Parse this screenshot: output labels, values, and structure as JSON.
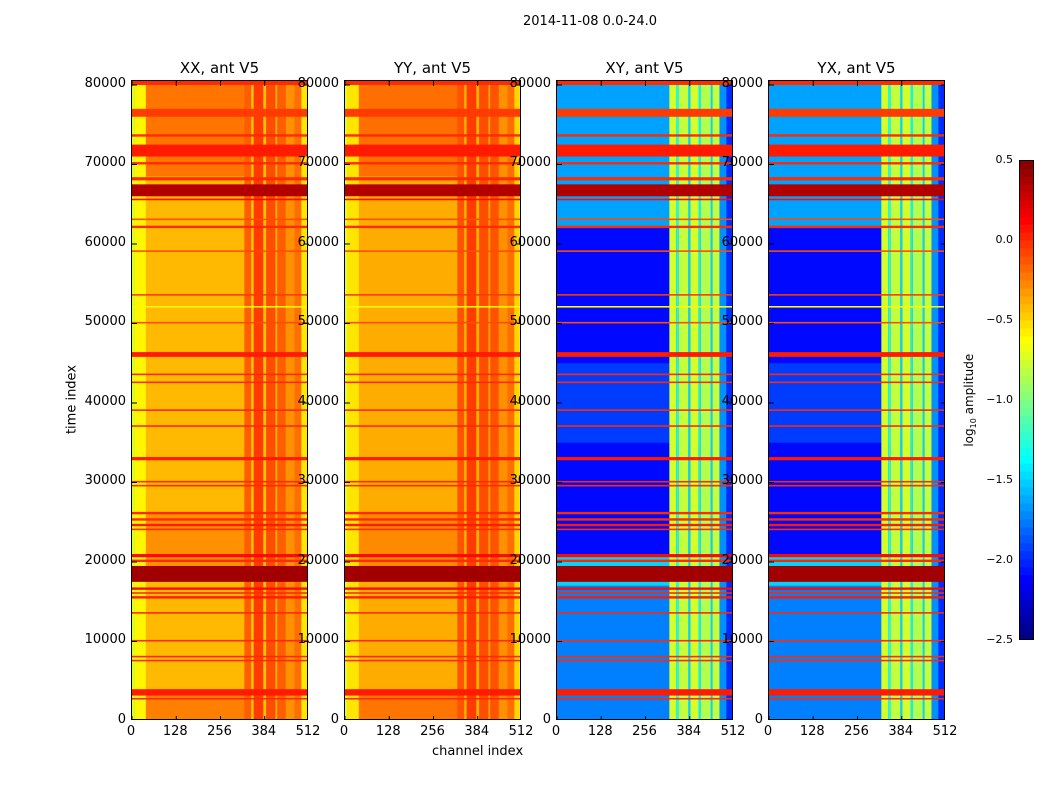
{
  "chart_data": {
    "type": "heatmap",
    "title": "2014-11-08 0.0-24.0",
    "xlabel": "channel index",
    "ylabel": "time index",
    "xlim": [
      0,
      512
    ],
    "ylim": [
      0,
      80500
    ],
    "xticks": [
      "0",
      "128",
      "256",
      "384",
      "512"
    ],
    "yticks": [
      "0",
      "10000",
      "20000",
      "30000",
      "40000",
      "50000",
      "60000",
      "70000",
      "80000"
    ],
    "colormap": "jet",
    "colorbar": {
      "label_main": "log",
      "label_sub": "10",
      "label_rest": " amplitude",
      "clim": [
        -2.5,
        0.5
      ],
      "ticks": [
        "0.5",
        "0.0",
        "−0.5",
        "−1.0",
        "−1.5",
        "−2.0",
        "−2.5"
      ]
    },
    "rfi_rows": [
      [
        80000,
        80500,
        0.0
      ],
      [
        76000,
        77000,
        -0.05
      ],
      [
        73500,
        73800,
        0.0
      ],
      [
        71000,
        72500,
        0.05
      ],
      [
        70000,
        70300,
        0.0
      ],
      [
        68000,
        68400,
        0.0
      ],
      [
        66000,
        67500,
        0.35
      ],
      [
        65500,
        65700,
        0.1
      ],
      [
        63000,
        63200,
        -0.1
      ],
      [
        62000,
        62300,
        0.0
      ],
      [
        59000,
        59200,
        -0.1
      ],
      [
        53500,
        53700,
        -0.05
      ],
      [
        52000,
        52200,
        -0.6
      ],
      [
        50000,
        50200,
        -0.1
      ],
      [
        45800,
        46400,
        0.05
      ],
      [
        43500,
        43700,
        0.0
      ],
      [
        42500,
        42700,
        0.0
      ],
      [
        39000,
        39200,
        0.0
      ],
      [
        37000,
        37200,
        0.0
      ],
      [
        32800,
        33200,
        0.05
      ],
      [
        30000,
        30200,
        0.0
      ],
      [
        29500,
        29700,
        0.0
      ],
      [
        26000,
        26300,
        0.0
      ],
      [
        25200,
        25500,
        0.0
      ],
      [
        24500,
        24800,
        0.05
      ],
      [
        24000,
        24200,
        0.0
      ],
      [
        20600,
        21000,
        0.1
      ],
      [
        20000,
        20300,
        0.0
      ],
      [
        17500,
        19500,
        0.4
      ],
      [
        16500,
        16800,
        0.1
      ],
      [
        16000,
        16200,
        0.0
      ],
      [
        15400,
        15700,
        0.05
      ],
      [
        13500,
        13700,
        0.0
      ],
      [
        10000,
        10200,
        0.0
      ],
      [
        8000,
        8200,
        0.0
      ],
      [
        7500,
        7700,
        0.0
      ],
      [
        3200,
        4000,
        0.05
      ],
      [
        2700,
        2900,
        0.0
      ]
    ],
    "panels": [
      {
        "title": "XX, ant V5",
        "time_bands": [
          [
            0,
            80500,
            -0.42
          ],
          [
            0,
            4000,
            -0.25
          ],
          [
            68500,
            80500,
            -0.22
          ],
          [
            19500,
            26000,
            -0.3
          ]
        ],
        "channel_profile": [
          [
            0,
            8,
            -0.75
          ],
          [
            8,
            40,
            -0.6
          ],
          [
            325,
            345,
            -0.15
          ],
          [
            345,
            352,
            -0.45
          ],
          [
            352,
            380,
            -0.05
          ],
          [
            380,
            388,
            -0.45
          ],
          [
            388,
            415,
            -0.1
          ],
          [
            415,
            420,
            -0.4
          ],
          [
            420,
            445,
            -0.15
          ],
          [
            445,
            470,
            -0.3
          ],
          [
            470,
            490,
            -0.2
          ],
          [
            490,
            505,
            -0.55
          ],
          [
            505,
            512,
            -0.75
          ]
        ]
      },
      {
        "title": "YY, ant V5",
        "time_bands": [
          [
            0,
            80500,
            -0.38
          ],
          [
            0,
            4000,
            -0.22
          ],
          [
            68500,
            80500,
            -0.2
          ],
          [
            19500,
            26000,
            -0.28
          ]
        ],
        "channel_profile": [
          [
            0,
            8,
            -0.7
          ],
          [
            8,
            40,
            -0.55
          ],
          [
            325,
            345,
            -0.12
          ],
          [
            345,
            352,
            -0.4
          ],
          [
            352,
            380,
            -0.05
          ],
          [
            380,
            388,
            -0.4
          ],
          [
            388,
            415,
            -0.1
          ],
          [
            415,
            420,
            -0.38
          ],
          [
            420,
            445,
            -0.12
          ],
          [
            445,
            470,
            -0.3
          ],
          [
            470,
            490,
            -0.2
          ],
          [
            490,
            505,
            -0.5
          ],
          [
            505,
            512,
            -0.7
          ]
        ]
      },
      {
        "title": "XY, ant V5",
        "time_bands": [
          [
            0,
            80500,
            -2.1
          ],
          [
            0,
            17000,
            -1.75
          ],
          [
            17000,
            21000,
            -1.5
          ],
          [
            62000,
            80500,
            -1.65
          ],
          [
            35000,
            45000,
            -1.95
          ]
        ],
        "channel_profile": [
          [
            325,
            345,
            -0.75
          ],
          [
            345,
            352,
            -1.3
          ],
          [
            352,
            380,
            -0.8
          ],
          [
            380,
            386,
            -1.5
          ],
          [
            386,
            410,
            -0.75
          ],
          [
            410,
            416,
            -1.4
          ],
          [
            416,
            445,
            -0.85
          ],
          [
            445,
            450,
            -1.5
          ],
          [
            450,
            470,
            -0.8
          ],
          [
            470,
            490,
            -1.7
          ],
          [
            490,
            512,
            -2.0
          ]
        ]
      },
      {
        "title": "YX, ant V5",
        "time_bands": [
          [
            0,
            80500,
            -2.1
          ],
          [
            0,
            17000,
            -1.75
          ],
          [
            17000,
            21000,
            -1.5
          ],
          [
            62000,
            80500,
            -1.65
          ],
          [
            35000,
            45000,
            -1.95
          ]
        ],
        "channel_profile": [
          [
            325,
            345,
            -0.75
          ],
          [
            345,
            352,
            -1.3
          ],
          [
            352,
            380,
            -0.8
          ],
          [
            380,
            386,
            -1.5
          ],
          [
            386,
            410,
            -0.75
          ],
          [
            410,
            416,
            -1.4
          ],
          [
            416,
            445,
            -0.85
          ],
          [
            445,
            450,
            -1.5
          ],
          [
            450,
            470,
            -0.8
          ],
          [
            470,
            490,
            -1.7
          ],
          [
            490,
            512,
            -2.0
          ]
        ]
      }
    ]
  }
}
